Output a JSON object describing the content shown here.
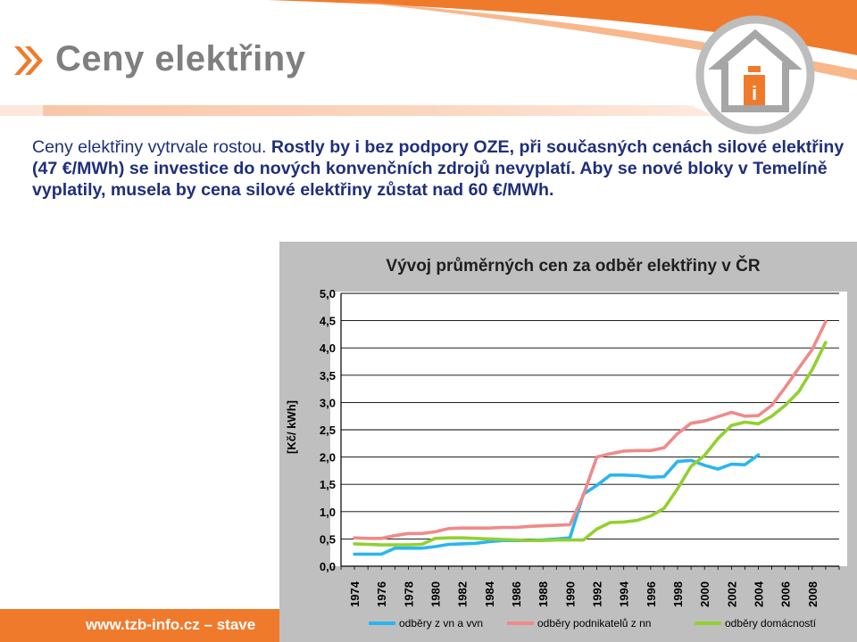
{
  "slide": {
    "title": "Ceny elektřiny",
    "body_lead": "Ceny elektřiny vytrvale rostou.",
    "body_rest": " Rostly by i bez podpory OZE, při současných cenách silové elektřiny (47 €/MWh) se investice do nových konvenčních zdrojů nevyplatí. Aby se nové bloky v Temelíně vyplatily, musela by cena silové elektřiny zůstat nad 60 €/MWh.",
    "footer": "www.tzb-info.cz – stave"
  },
  "logo": {
    "icon": "house-info-icon",
    "glyph": "i"
  },
  "colors": {
    "accent_orange": "#f07a2c",
    "text_blue": "#1f2f7a",
    "title_gray": "#7f7f7f",
    "series_vn": "#29b6f0",
    "series_nn": "#f08a8a",
    "series_dom": "#92d030"
  },
  "chart_data": {
    "type": "line",
    "title": "Vývoj průměrných cen za odběr elektřiny v ČR",
    "ylabel": "[Kč/ kWh]",
    "xlabel": "",
    "ylim": [
      0,
      5
    ],
    "xlim": [
      1973,
      2010
    ],
    "yticks": [
      "0,0",
      "0,5",
      "1,0",
      "1,5",
      "2,0",
      "2,5",
      "3,0",
      "3,5",
      "4,0",
      "4,5",
      "5,0"
    ],
    "xticks": [
      "1974",
      "1976",
      "1978",
      "1980",
      "1982",
      "1984",
      "1986",
      "1988",
      "1990",
      "1992",
      "1994",
      "1996",
      "1998",
      "2000",
      "2002",
      "2004",
      "2006",
      "2008"
    ],
    "grid": "horizontal",
    "legend_position": "bottom",
    "series": [
      {
        "name": "odběry z vn a vvn",
        "color": "#29b6f0",
        "x": [
          1974,
          1975,
          1976,
          1977,
          1978,
          1979,
          1980,
          1981,
          1982,
          1983,
          1984,
          1985,
          1986,
          1987,
          1988,
          1989,
          1990,
          1991,
          1992,
          1993,
          1994,
          1995,
          1996,
          1997,
          1998,
          1999,
          2000,
          2001,
          2002,
          2003,
          2004
        ],
        "y": [
          0.22,
          0.22,
          0.22,
          0.33,
          0.33,
          0.33,
          0.36,
          0.4,
          0.41,
          0.42,
          0.45,
          0.47,
          0.47,
          0.47,
          0.48,
          0.5,
          0.52,
          1.32,
          1.48,
          1.67,
          1.67,
          1.66,
          1.63,
          1.64,
          1.92,
          1.94,
          1.85,
          1.78,
          1.87,
          1.86,
          2.04
        ]
      },
      {
        "name": "odběry podnikatelů z nn",
        "color": "#f08a8a",
        "x": [
          1974,
          1975,
          1976,
          1977,
          1978,
          1979,
          1980,
          1981,
          1982,
          1983,
          1984,
          1985,
          1986,
          1987,
          1988,
          1989,
          1990,
          1991,
          1992,
          1993,
          1994,
          1995,
          1996,
          1997,
          1998,
          1999,
          2000,
          2001,
          2002,
          2003,
          2004,
          2005,
          2006,
          2007,
          2008,
          2009
        ],
        "y": [
          0.52,
          0.51,
          0.51,
          0.56,
          0.6,
          0.6,
          0.63,
          0.69,
          0.7,
          0.7,
          0.7,
          0.71,
          0.71,
          0.73,
          0.74,
          0.75,
          0.76,
          1.3,
          2.0,
          2.06,
          2.11,
          2.12,
          2.12,
          2.17,
          2.43,
          2.62,
          2.66,
          2.74,
          2.82,
          2.75,
          2.76,
          2.95,
          3.28,
          3.63,
          3.97,
          4.48
        ]
      },
      {
        "name": "odběry domácností",
        "color": "#92d030",
        "x": [
          1974,
          1975,
          1976,
          1977,
          1978,
          1979,
          1980,
          1981,
          1982,
          1983,
          1984,
          1985,
          1986,
          1987,
          1988,
          1989,
          1990,
          1991,
          1992,
          1993,
          1994,
          1995,
          1996,
          1997,
          1998,
          1999,
          2000,
          2001,
          2002,
          2003,
          2004,
          2005,
          2006,
          2007,
          2008,
          2009
        ],
        "y": [
          0.41,
          0.4,
          0.39,
          0.39,
          0.39,
          0.4,
          0.51,
          0.52,
          0.52,
          0.51,
          0.5,
          0.49,
          0.48,
          0.47,
          0.47,
          0.48,
          0.48,
          0.48,
          0.68,
          0.8,
          0.81,
          0.84,
          0.92,
          1.06,
          1.42,
          1.83,
          2.03,
          2.34,
          2.58,
          2.64,
          2.61,
          2.75,
          2.95,
          3.2,
          3.6,
          4.1
        ]
      }
    ]
  }
}
